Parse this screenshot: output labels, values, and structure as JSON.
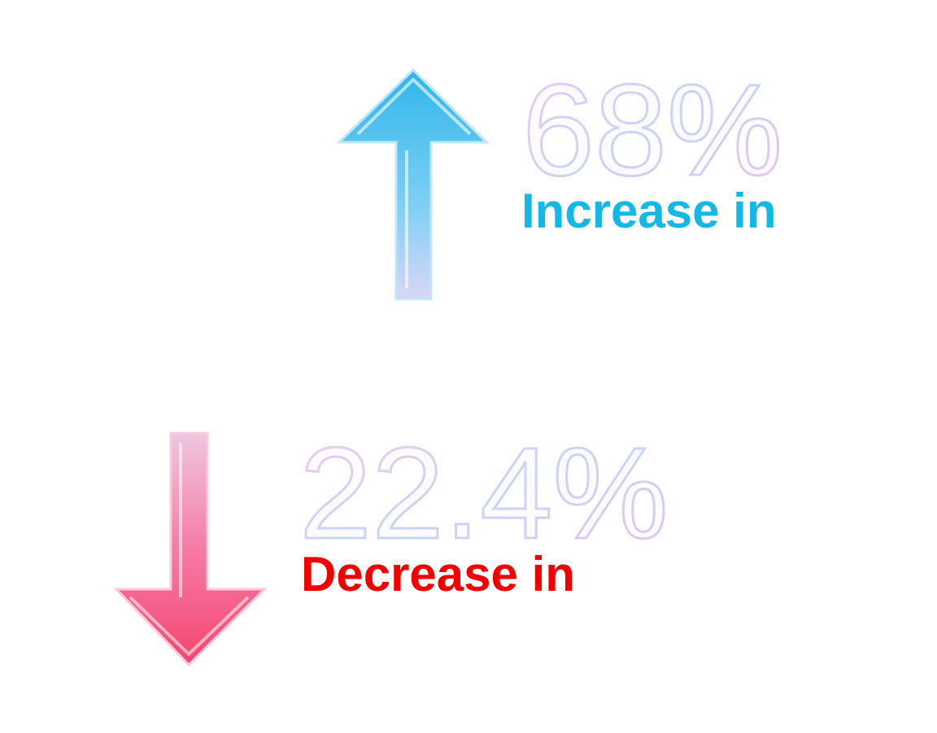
{
  "increase": {
    "value": "68%",
    "label": "Increase in"
  },
  "decrease": {
    "value": "22.4%",
    "label": "Decrease in"
  }
}
